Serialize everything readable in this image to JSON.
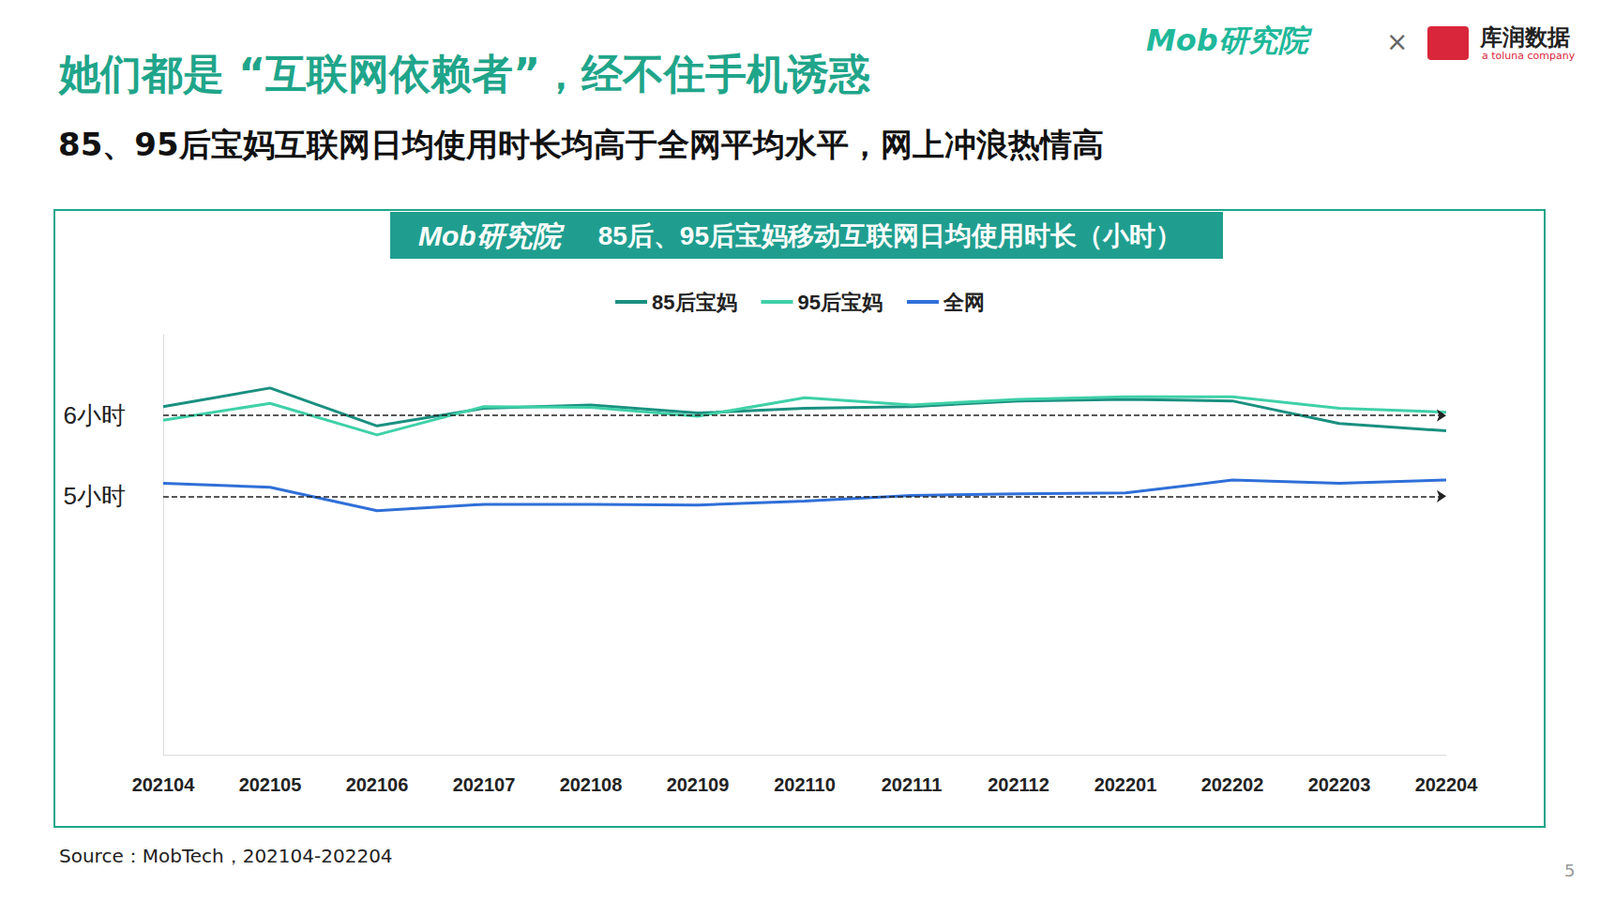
{
  "slide": {
    "title": "她们都是 “互联网依赖者”，经不住手机诱惑",
    "subtitle": "85、95后宝妈互联网日均使用时长均高于全网平均水平，网上冲浪热情高",
    "logo_left": "Mob研究院",
    "logo_sep": "×",
    "logo_right": "库润数据",
    "logo_right_sub": "a toluna company",
    "chart_badge": "Mob研究院",
    "source": "Source：MobTech，202104-202204",
    "page": "5"
  },
  "chart_data": {
    "type": "line",
    "title": "85后、95后宝妈移动互联网日均使用时长（小时）",
    "categories": [
      "202104",
      "202105",
      "202106",
      "202107",
      "202108",
      "202109",
      "202110",
      "202111",
      "202112",
      "202201",
      "202202",
      "202203",
      "202204"
    ],
    "series": [
      {
        "name": "85后宝妈",
        "color": "#1a9080",
        "values": [
          6.11,
          6.34,
          5.87,
          6.09,
          6.13,
          6.03,
          6.09,
          6.11,
          6.18,
          6.2,
          6.18,
          5.9,
          5.81
        ]
      },
      {
        "name": "95后宝妈",
        "color": "#3fd0a8",
        "values": [
          5.94,
          6.15,
          5.76,
          6.11,
          6.1,
          5.99,
          6.22,
          6.13,
          6.2,
          6.23,
          6.23,
          6.09,
          6.04
        ]
      },
      {
        "name": "全网",
        "color": "#2f6fd8",
        "values": [
          5.16,
          5.11,
          4.82,
          4.9,
          4.9,
          4.89,
          4.94,
          5.01,
          5.03,
          5.04,
          5.2,
          5.16,
          5.2
        ]
      }
    ],
    "ylim": [
      1.8,
      7
    ],
    "yticks": [
      {
        "value": 5,
        "label": "5小时"
      },
      {
        "value": 6,
        "label": "6小时"
      }
    ],
    "grid": true,
    "legend": "top"
  }
}
